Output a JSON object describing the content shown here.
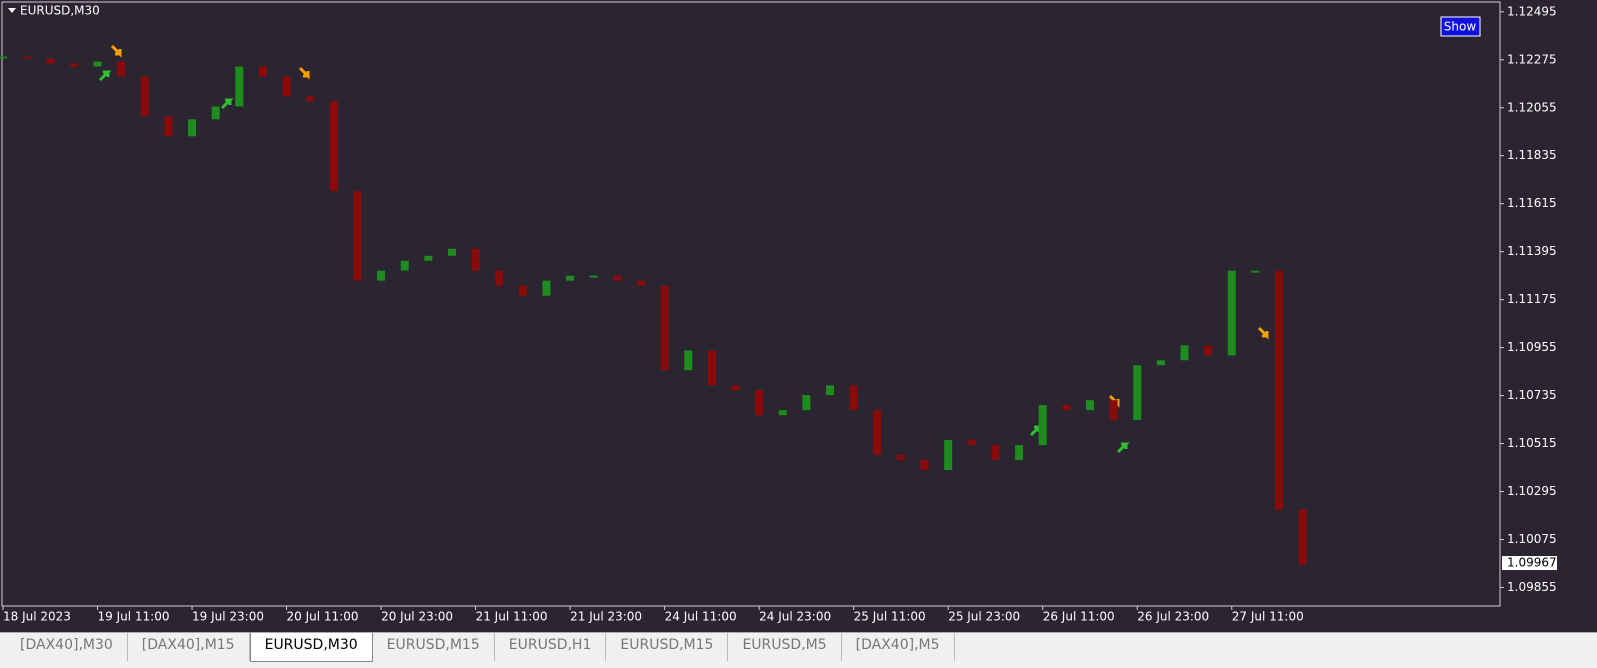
{
  "chart_data": {
    "type": "candlestick",
    "title": "EURUSD,M30",
    "categories": [
      "18 Jul 2023",
      null,
      null,
      null,
      "19 Jul 11:00",
      null,
      null,
      null,
      "19 Jul 23:00",
      null,
      null,
      null,
      "20 Jul 11:00",
      null,
      null,
      null,
      "20 Jul 23:00",
      null,
      null,
      null,
      "21 Jul 11:00",
      null,
      null,
      null,
      "21 Jul 23:00",
      null,
      null,
      null,
      "24 Jul 11:00",
      null,
      null,
      null,
      "24 Jul 23:00",
      null,
      null,
      null,
      "25 Jul 11:00",
      null,
      null,
      null,
      "25 Jul 23:00",
      null,
      null,
      null,
      "26 Jul 11:00",
      null,
      null,
      null,
      "26 Jul 23:00",
      null,
      null,
      null,
      "27 Jul 11:00",
      null,
      null,
      null
    ],
    "values": [
      1.1229,
      1.1228,
      1.12258,
      1.12244,
      1.12267,
      1.12198,
      1.12016,
      1.11924,
      1.12002,
      1.12061,
      1.12244,
      1.12198,
      1.12107,
      1.12084,
      1.11673,
      1.11262,
      1.11308,
      1.11353,
      1.11376,
      1.11408,
      1.11308,
      1.11239,
      1.11193,
      1.11262,
      1.11285,
      1.11285,
      1.11262,
      1.11239,
      1.10851,
      1.10942,
      1.10782,
      1.1076,
      1.10645,
      1.10668,
      1.10737,
      1.10782,
      1.10668,
      1.10463,
      1.1044,
      1.10394,
      1.10531,
      1.10508,
      1.1044,
      1.10508,
      1.10691,
      1.10668,
      1.10714,
      1.10623,
      1.10874,
      1.10897,
      1.10965,
      1.10919,
      1.11308,
      1.11308,
      1.10212,
      1.0996
    ],
    "up_color": "#1e8c1e",
    "down_color": "#8b0a0a",
    "ylim": [
      1.0977,
      1.1254
    ],
    "yticks": [
      1.12495,
      1.12275,
      1.12055,
      1.11835,
      1.11615,
      1.11395,
      1.11175,
      1.10955,
      1.10735,
      1.10515,
      1.10295,
      1.10075,
      1.09855
    ],
    "current_price": 1.09967
  },
  "button": "Show",
  "tabs": [
    "[DAX40],M30",
    "[DAX40],M15",
    "EURUSD,M30",
    "EURUSD,M15",
    "EURUSD,H1",
    "EURUSD,M15",
    "EURUSD,M5",
    "[DAX40],M5"
  ],
  "active_tab": 2
}
